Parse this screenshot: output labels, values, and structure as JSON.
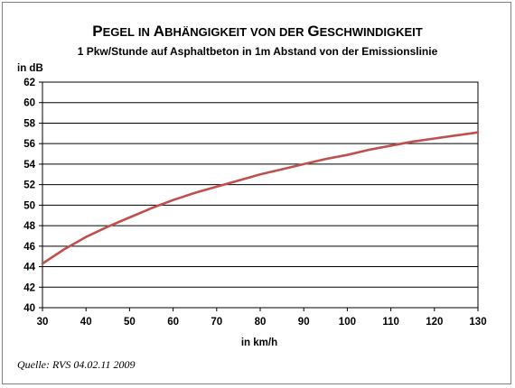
{
  "chart_data": {
    "type": "line",
    "title": "Pegel in Abhängigkeit von der Geschwindigkeit",
    "subtitle": "1 Pkw/Stunde auf Asphaltbeton in 1m Abstand von der Emissionslinie",
    "xlabel": "in km/h",
    "ylabel": "in dB",
    "xlim": [
      30,
      130
    ],
    "ylim": [
      40,
      62
    ],
    "x_ticks": [
      30,
      40,
      50,
      60,
      70,
      80,
      90,
      100,
      110,
      120,
      130
    ],
    "y_ticks": [
      40,
      42,
      44,
      46,
      48,
      50,
      52,
      54,
      56,
      58,
      60,
      62
    ],
    "grid": "horizontal",
    "legend": "none",
    "series": [
      {
        "color": "#c0504d",
        "x": [
          30,
          35,
          40,
          45,
          50,
          55,
          60,
          65,
          70,
          75,
          80,
          85,
          90,
          95,
          100,
          105,
          110,
          115,
          120,
          125,
          130
        ],
        "y": [
          44.3,
          45.7,
          46.9,
          47.9,
          48.8,
          49.7,
          50.5,
          51.2,
          51.8,
          52.4,
          53.0,
          53.5,
          54.0,
          54.5,
          54.9,
          55.4,
          55.8,
          56.2,
          56.5,
          56.8,
          57.1
        ]
      }
    ],
    "source": "Quelle: RVS 04.02.11 2009"
  }
}
